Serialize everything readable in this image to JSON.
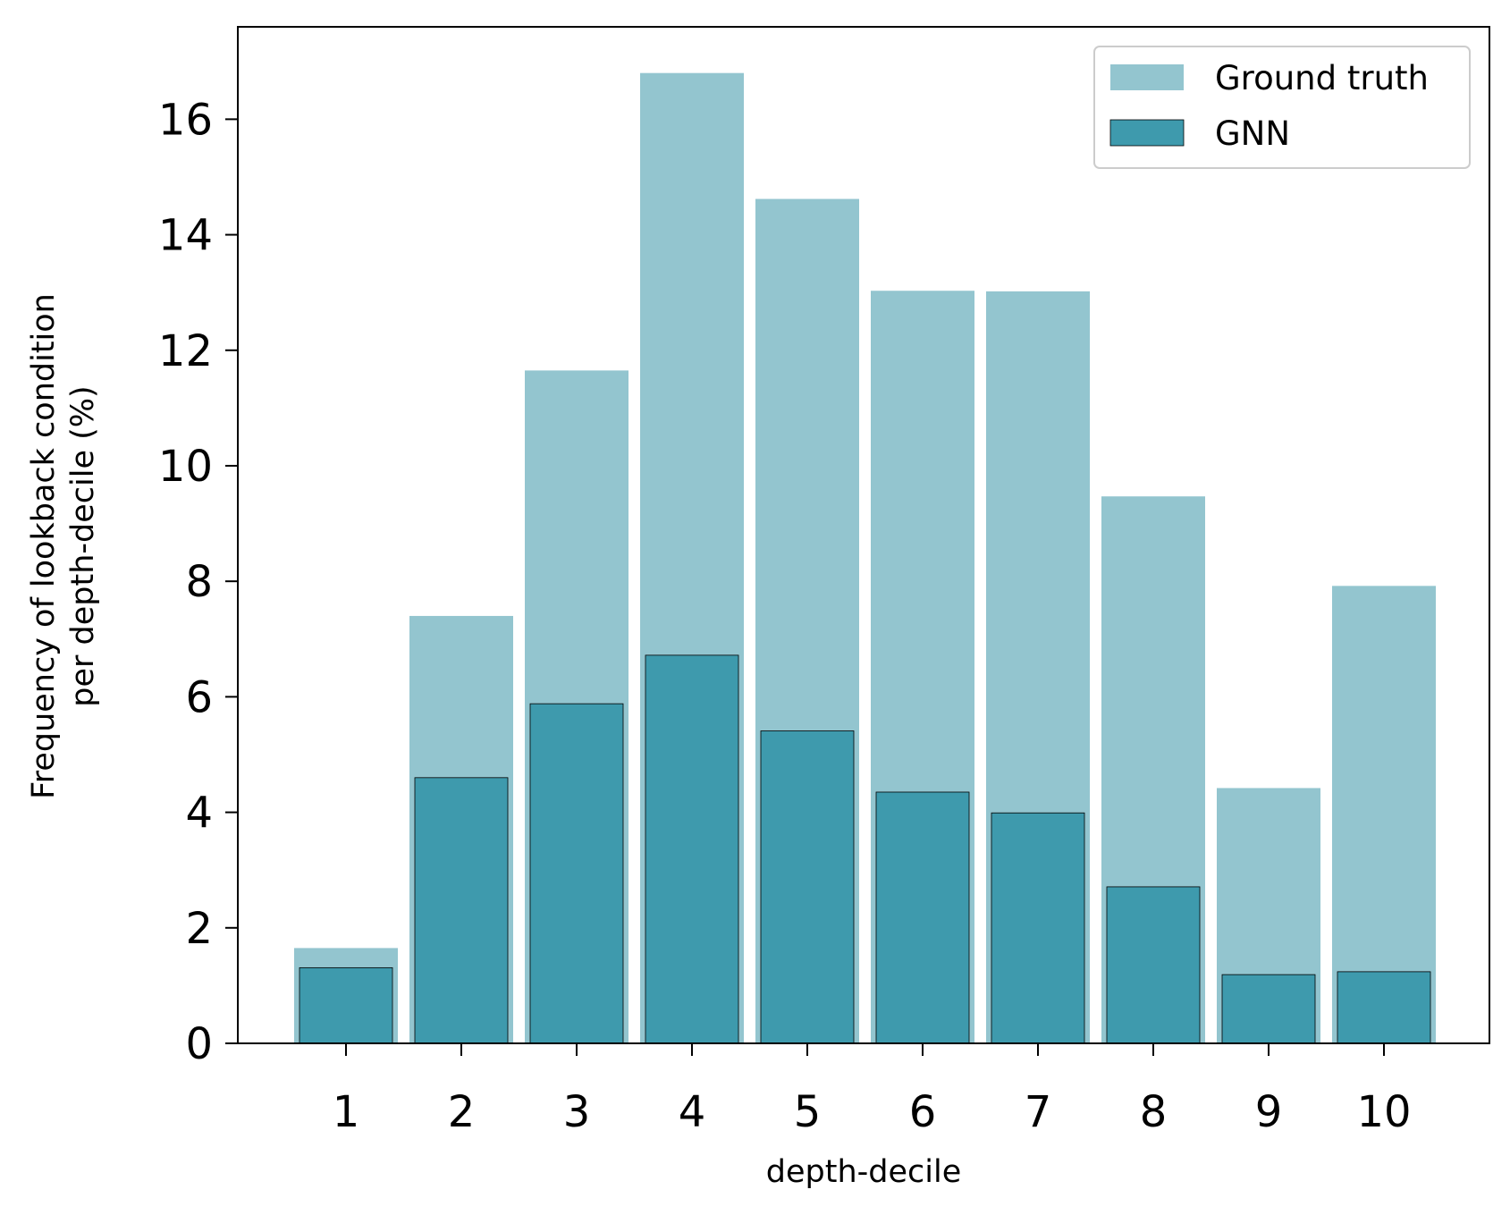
{
  "chart_data": {
    "type": "bar",
    "xlabel": "depth-decile",
    "ylabel": [
      "Frequency of lookback condition",
      "per depth-decile (%)"
    ],
    "categories": [
      "1",
      "2",
      "3",
      "4",
      "5",
      "6",
      "7",
      "8",
      "9",
      "10"
    ],
    "ylim": [
      0,
      17.6
    ],
    "yticks": [
      0,
      2,
      4,
      6,
      8,
      10,
      12,
      14,
      16
    ],
    "grid": false,
    "legend_position": "top-right",
    "series": [
      {
        "name": "Ground truth",
        "color": "#93c5cf",
        "edge": false,
        "values": [
          1.65,
          7.4,
          11.65,
          16.8,
          14.62,
          13.03,
          13.02,
          9.47,
          4.42,
          7.92
        ]
      },
      {
        "name": "GNN",
        "color": "#3e9aad",
        "edge": true,
        "values": [
          1.31,
          4.6,
          5.88,
          6.72,
          5.41,
          4.35,
          3.99,
          2.71,
          1.19,
          1.24
        ]
      }
    ]
  }
}
